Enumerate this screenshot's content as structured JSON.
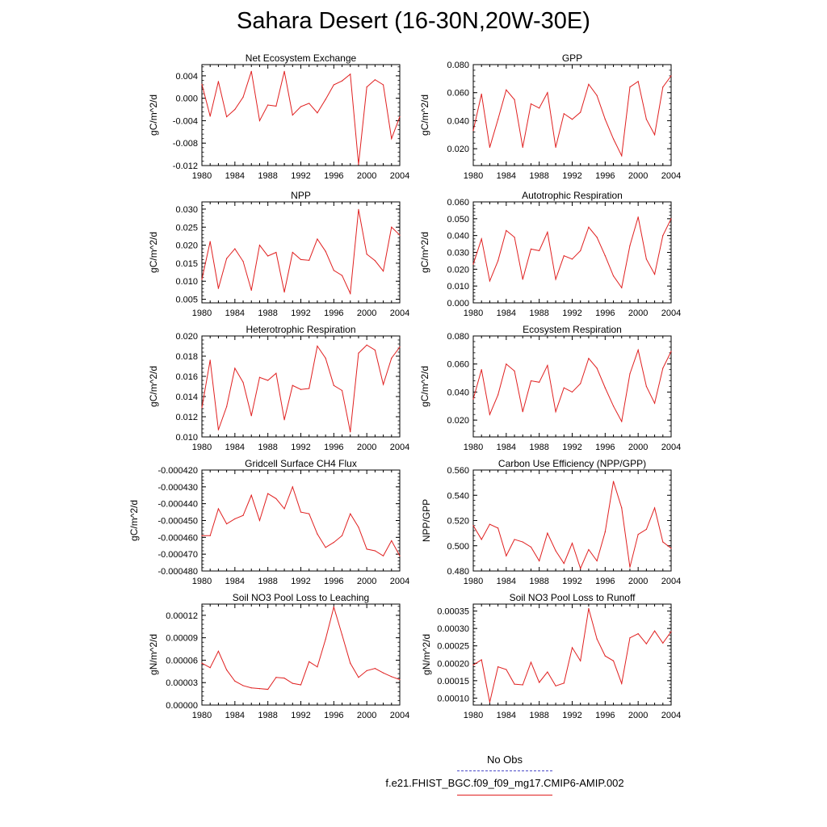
{
  "title": "Sahara Desert (16-30N,20W-30E)",
  "legend": [
    {
      "label": "No Obs",
      "color": "#4a4ac8",
      "style": "dashed"
    },
    {
      "label": "f.e21.FHIST_BGC.f09_f09_mg17.CMIP6-AMIP.002",
      "color": "#e02020",
      "style": "solid"
    }
  ],
  "chart_data": [
    {
      "type": "line",
      "title": "Net Ecosystem Exchange",
      "ylabel": "gC/m^2/d",
      "xlabel": "",
      "xlim": [
        1980,
        2004
      ],
      "xticks": [
        1980,
        1984,
        1988,
        1992,
        1996,
        2000,
        2004
      ],
      "ylim": [
        -0.012,
        0.006
      ],
      "yticks": [
        0.004,
        0.0,
        -0.004,
        -0.008,
        -0.012
      ],
      "yticklabels": [
        "0.004",
        "0.000",
        "-0.004",
        "-0.008",
        "-0.012"
      ],
      "series": [
        {
          "color": "#e02020",
          "x": [
            1980,
            1981,
            1982,
            1983,
            1984,
            1985,
            1986,
            1987,
            1988,
            1989,
            1990,
            1991,
            1992,
            1993,
            1994,
            1995,
            1996,
            1997,
            1998,
            1999,
            2000,
            2001,
            2002,
            2003,
            2004
          ],
          "y": [
            0.0025,
            -0.0032,
            0.003,
            -0.0033,
            -0.002,
            0.0002,
            0.0048,
            -0.004,
            -0.0012,
            -0.0014,
            0.0048,
            -0.003,
            -0.0015,
            -0.0009,
            -0.0026,
            -0.0002,
            0.0024,
            0.0031,
            0.0043,
            -0.0118,
            0.002,
            0.0033,
            0.0024,
            -0.0072,
            -0.0033
          ]
        }
      ]
    },
    {
      "type": "line",
      "title": "GPP",
      "ylabel": "gC/m^2/d",
      "xlabel": "",
      "xlim": [
        1980,
        2004
      ],
      "xticks": [
        1980,
        1984,
        1988,
        1992,
        1996,
        2000,
        2004
      ],
      "ylim": [
        0.008,
        0.08
      ],
      "yticks": [
        0.08,
        0.06,
        0.04,
        0.02
      ],
      "yticklabels": [
        "0.080",
        "0.060",
        "0.040",
        "0.020"
      ],
      "series": [
        {
          "color": "#e02020",
          "x": [
            1980,
            1981,
            1982,
            1983,
            1984,
            1985,
            1986,
            1987,
            1988,
            1989,
            1990,
            1991,
            1992,
            1993,
            1994,
            1995,
            1996,
            1997,
            1998,
            1999,
            2000,
            2001,
            2002,
            2003,
            2004
          ],
          "y": [
            0.033,
            0.059,
            0.021,
            0.041,
            0.062,
            0.055,
            0.021,
            0.052,
            0.049,
            0.06,
            0.021,
            0.045,
            0.041,
            0.046,
            0.066,
            0.058,
            0.041,
            0.027,
            0.015,
            0.064,
            0.068,
            0.041,
            0.03,
            0.064,
            0.072
          ]
        }
      ]
    },
    {
      "type": "line",
      "title": "NPP",
      "ylabel": "gC/m^2/d",
      "xlabel": "",
      "xlim": [
        1980,
        2004
      ],
      "xticks": [
        1980,
        1984,
        1988,
        1992,
        1996,
        2000,
        2004
      ],
      "ylim": [
        0.004,
        0.032
      ],
      "yticks": [
        0.03,
        0.025,
        0.02,
        0.015,
        0.01,
        0.005
      ],
      "yticklabels": [
        "0.030",
        "0.025",
        "0.020",
        "0.015",
        "0.010",
        "0.005"
      ],
      "series": [
        {
          "color": "#e02020",
          "x": [
            1980,
            1981,
            1982,
            1983,
            1984,
            1985,
            1986,
            1987,
            1988,
            1989,
            1990,
            1991,
            1992,
            1993,
            1994,
            1995,
            1996,
            1997,
            1998,
            1999,
            2000,
            2001,
            2002,
            2003,
            2004
          ],
          "y": [
            0.0105,
            0.021,
            0.008,
            0.0163,
            0.019,
            0.0155,
            0.0075,
            0.02,
            0.017,
            0.018,
            0.007,
            0.018,
            0.016,
            0.0158,
            0.0217,
            0.0183,
            0.013,
            0.0116,
            0.0066,
            0.0299,
            0.0175,
            0.0157,
            0.0128,
            0.025,
            0.0228
          ]
        }
      ]
    },
    {
      "type": "line",
      "title": "Autotrophic Respiration",
      "ylabel": "gC/m^2/d",
      "xlabel": "",
      "xlim": [
        1980,
        2004
      ],
      "xticks": [
        1980,
        1984,
        1988,
        1992,
        1996,
        2000,
        2004
      ],
      "ylim": [
        0.0,
        0.06
      ],
      "yticks": [
        0.06,
        0.05,
        0.04,
        0.03,
        0.02,
        0.01,
        0.0
      ],
      "yticklabels": [
        "0.060",
        "0.050",
        "0.040",
        "0.030",
        "0.020",
        "0.010",
        "0.000"
      ],
      "series": [
        {
          "color": "#e02020",
          "x": [
            1980,
            1981,
            1982,
            1983,
            1984,
            1985,
            1986,
            1987,
            1988,
            1989,
            1990,
            1991,
            1992,
            1993,
            1994,
            1995,
            1996,
            1997,
            1998,
            1999,
            2000,
            2001,
            2002,
            2003,
            2004
          ],
          "y": [
            0.023,
            0.038,
            0.013,
            0.025,
            0.043,
            0.039,
            0.014,
            0.032,
            0.031,
            0.042,
            0.014,
            0.028,
            0.026,
            0.031,
            0.045,
            0.039,
            0.028,
            0.016,
            0.009,
            0.034,
            0.051,
            0.026,
            0.017,
            0.04,
            0.05
          ]
        }
      ]
    },
    {
      "type": "line",
      "title": "Heterotrophic Respiration",
      "ylabel": "gC/m^2/d",
      "xlabel": "",
      "xlim": [
        1980,
        2004
      ],
      "xticks": [
        1980,
        1984,
        1988,
        1992,
        1996,
        2000,
        2004
      ],
      "ylim": [
        0.01,
        0.02
      ],
      "yticks": [
        0.02,
        0.018,
        0.016,
        0.014,
        0.012,
        0.01
      ],
      "yticklabels": [
        "0.020",
        "0.018",
        "0.016",
        "0.014",
        "0.012",
        "0.010"
      ],
      "series": [
        {
          "color": "#e02020",
          "x": [
            1980,
            1981,
            1982,
            1983,
            1984,
            1985,
            1986,
            1987,
            1988,
            1989,
            1990,
            1991,
            1992,
            1993,
            1994,
            1995,
            1996,
            1997,
            1998,
            1999,
            2000,
            2001,
            2002,
            2003,
            2004
          ],
          "y": [
            0.0129,
            0.0176,
            0.0107,
            0.013,
            0.0168,
            0.0154,
            0.0121,
            0.0159,
            0.0156,
            0.0163,
            0.0117,
            0.0151,
            0.0147,
            0.0148,
            0.019,
            0.0178,
            0.0151,
            0.0146,
            0.0105,
            0.0183,
            0.0191,
            0.0186,
            0.0152,
            0.0178,
            0.0189
          ]
        }
      ]
    },
    {
      "type": "line",
      "title": "Ecosystem Respiration",
      "ylabel": "gC/m^2/d",
      "xlabel": "",
      "xlim": [
        1980,
        2004
      ],
      "xticks": [
        1980,
        1984,
        1988,
        1992,
        1996,
        2000,
        2004
      ],
      "ylim": [
        0.008,
        0.08
      ],
      "yticks": [
        0.08,
        0.06,
        0.04,
        0.02
      ],
      "yticklabels": [
        "0.080",
        "0.060",
        "0.040",
        "0.020"
      ],
      "series": [
        {
          "color": "#e02020",
          "x": [
            1980,
            1981,
            1982,
            1983,
            1984,
            1985,
            1986,
            1987,
            1988,
            1989,
            1990,
            1991,
            1992,
            1993,
            1994,
            1995,
            1996,
            1997,
            1998,
            1999,
            2000,
            2001,
            2002,
            2003,
            2004
          ],
          "y": [
            0.035,
            0.056,
            0.024,
            0.038,
            0.06,
            0.055,
            0.026,
            0.048,
            0.047,
            0.059,
            0.026,
            0.043,
            0.04,
            0.046,
            0.064,
            0.057,
            0.043,
            0.03,
            0.019,
            0.053,
            0.07,
            0.044,
            0.032,
            0.057,
            0.069
          ]
        }
      ]
    },
    {
      "type": "line",
      "title": "Gridcell Surface CH4 Flux",
      "ylabel": "gC/m^2/d",
      "xlabel": "",
      "xlim": [
        1980,
        2004
      ],
      "xticks": [
        1980,
        1984,
        1988,
        1992,
        1996,
        2000,
        2004
      ],
      "ylim": [
        -0.00048,
        -0.00042
      ],
      "yticks": [
        -0.00042,
        -0.00043,
        -0.00044,
        -0.00045,
        -0.00046,
        -0.00047,
        -0.00048
      ],
      "yticklabels": [
        "-0.000420",
        "-0.000430",
        "-0.000440",
        "-0.000450",
        "-0.000460",
        "-0.000470",
        "-0.000480"
      ],
      "series": [
        {
          "color": "#e02020",
          "x": [
            1980,
            1981,
            1982,
            1983,
            1984,
            1985,
            1986,
            1987,
            1988,
            1989,
            1990,
            1991,
            1992,
            1993,
            1994,
            1995,
            1996,
            1997,
            1998,
            1999,
            2000,
            2001,
            2002,
            2003,
            2004
          ],
          "y": [
            -0.000459,
            -0.000459,
            -0.000443,
            -0.000452,
            -0.000449,
            -0.000447,
            -0.000435,
            -0.00045,
            -0.000434,
            -0.000437,
            -0.000443,
            -0.00043,
            -0.000445,
            -0.000446,
            -0.000458,
            -0.000466,
            -0.000463,
            -0.000459,
            -0.000446,
            -0.000454,
            -0.000467,
            -0.000468,
            -0.000471,
            -0.000462,
            -0.000471
          ]
        }
      ]
    },
    {
      "type": "line",
      "title": "Carbon Use Efficiency (NPP/GPP)",
      "ylabel": "NPP/GPP",
      "xlabel": "",
      "xlim": [
        1980,
        2004
      ],
      "xticks": [
        1980,
        1984,
        1988,
        1992,
        1996,
        2000,
        2004
      ],
      "ylim": [
        0.48,
        0.56
      ],
      "yticks": [
        0.56,
        0.54,
        0.52,
        0.5,
        0.48
      ],
      "yticklabels": [
        "0.560",
        "0.540",
        "0.520",
        "0.500",
        "0.480"
      ],
      "series": [
        {
          "color": "#e02020",
          "x": [
            1980,
            1981,
            1982,
            1983,
            1984,
            1985,
            1986,
            1987,
            1988,
            1989,
            1990,
            1991,
            1992,
            1993,
            1994,
            1995,
            1996,
            1997,
            1998,
            1999,
            2000,
            2001,
            2002,
            2003,
            2004
          ],
          "y": [
            0.516,
            0.505,
            0.517,
            0.514,
            0.492,
            0.505,
            0.503,
            0.499,
            0.488,
            0.51,
            0.496,
            0.486,
            0.502,
            0.482,
            0.497,
            0.488,
            0.511,
            0.551,
            0.53,
            0.483,
            0.509,
            0.513,
            0.53,
            0.503,
            0.498
          ]
        }
      ]
    },
    {
      "type": "line",
      "title": "Soil NO3 Pool Loss to Leaching",
      "ylabel": "gN/m^2/d",
      "xlabel": "",
      "xlim": [
        1980,
        2004
      ],
      "xticks": [
        1980,
        1984,
        1988,
        1992,
        1996,
        2000,
        2004
      ],
      "ylim": [
        0.0,
        0.000135
      ],
      "yticks": [
        0.00012,
        9e-05,
        6e-05,
        3e-05,
        0.0
      ],
      "yticklabels": [
        "0.00012",
        "0.00009",
        "0.00006",
        "0.00003",
        "0.00000"
      ],
      "series": [
        {
          "color": "#e02020",
          "x": [
            1980,
            1981,
            1982,
            1983,
            1984,
            1985,
            1986,
            1987,
            1988,
            1989,
            1990,
            1991,
            1992,
            1993,
            1994,
            1995,
            1996,
            1997,
            1998,
            1999,
            2000,
            2001,
            2002,
            2003,
            2004
          ],
          "y": [
            5.6e-05,
            5e-05,
            7.2e-05,
            4.7e-05,
            3.2e-05,
            2.6e-05,
            2.3e-05,
            2.2e-05,
            2.1e-05,
            3.7e-05,
            3.6e-05,
            2.9e-05,
            2.7e-05,
            5.8e-05,
            5.1e-05,
            8.8e-05,
            0.000131,
            9.4e-05,
            5.6e-05,
            3.7e-05,
            4.6e-05,
            4.9e-05,
            4.3e-05,
            3.8e-05,
            3.4e-05
          ]
        }
      ]
    },
    {
      "type": "line",
      "title": "Soil NO3 Pool Loss to Runoff",
      "ylabel": "gN/m^2/d",
      "xlabel": "",
      "xlim": [
        1980,
        2004
      ],
      "xticks": [
        1980,
        1984,
        1988,
        1992,
        1996,
        2000,
        2004
      ],
      "ylim": [
        8e-05,
        0.00037
      ],
      "yticks": [
        0.00035,
        0.0003,
        0.00025,
        0.0002,
        0.00015,
        0.0001
      ],
      "yticklabels": [
        "0.00035",
        "0.00030",
        "0.00025",
        "0.00020",
        "0.00015",
        "0.00010"
      ],
      "series": [
        {
          "color": "#e02020",
          "x": [
            1980,
            1981,
            1982,
            1983,
            1984,
            1985,
            1986,
            1987,
            1988,
            1989,
            1990,
            1991,
            1992,
            1993,
            1994,
            1995,
            1996,
            1997,
            1998,
            1999,
            2000,
            2001,
            2002,
            2003,
            2004
          ],
          "y": [
            0.000195,
            0.00021,
            8.8e-05,
            0.00019,
            0.000182,
            0.00014,
            0.000138,
            0.000203,
            0.000145,
            0.000175,
            0.000135,
            0.000143,
            0.000245,
            0.000207,
            0.000357,
            0.00027,
            0.000221,
            0.000207,
            0.000142,
            0.000273,
            0.000285,
            0.000256,
            0.000293,
            0.000258,
            0.000291
          ]
        }
      ]
    }
  ]
}
